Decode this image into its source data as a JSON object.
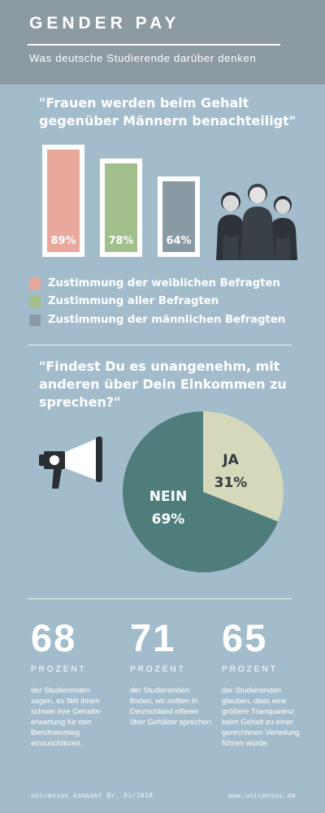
{
  "header": {
    "title": "GENDER PAY",
    "subtitle": "Was deutsche Studierende darüber denken"
  },
  "colors": {
    "header_bg": "#8c9aa1",
    "page_bg": "#a3bccb",
    "female": "#e8a89b",
    "all": "#a3bf8c",
    "male": "#8a9aa5",
    "pie_yes": "#d5d8ba",
    "pie_no": "#4e7d7c"
  },
  "question1": "\"Frauen werden beim Gehalt gegenüber Männern benachteiligt\"",
  "chart_data": [
    {
      "type": "bar",
      "title": "\"Frauen werden beim Gehalt gegenüber Männern benachteiligt\"",
      "categories": [
        "Zustimmung der weiblichen Befragten",
        "Zustimmung aller Befragten",
        "Zustimmung der männlichen Befragten"
      ],
      "values": [
        89,
        78,
        64
      ],
      "value_labels": [
        "89%",
        "78%",
        "64%"
      ],
      "unit": "%",
      "colors": [
        "#e8a89b",
        "#a3bf8c",
        "#8a9aa5"
      ],
      "legend_placement": "bottom",
      "grid": false
    },
    {
      "type": "pie",
      "title": "\"Findest Du es unangenehm, mit anderen über Dein Einkommen zu sprechen?\"",
      "slices": [
        {
          "label": "JA",
          "value": 31,
          "value_label": "31%",
          "color": "#d5d8ba"
        },
        {
          "label": "NEIN",
          "value": 69,
          "value_label": "69%",
          "color": "#4e7d7c"
        }
      ]
    }
  ],
  "legend": [
    {
      "label": "Zustimmung der weiblichen Befragten",
      "color": "#e8a89b"
    },
    {
      "label": "Zustimmung aller Befragten",
      "color": "#a3bf8c"
    },
    {
      "label": "Zustimmung der männlichen Befragten",
      "color": "#8a9aa5"
    }
  ],
  "question2": "\"Findest Du es unangenehm, mit anderen über Dein Einkommen zu sprechen?\"",
  "pie_labels": {
    "yes_label": "JA",
    "yes_value": "31%",
    "no_label": "NEIN",
    "no_value": "69%"
  },
  "stats": [
    {
      "number": "68",
      "unit": "PROZENT",
      "desc": "der Studierenden sagen, es fällt ihnen schwer ihre Gehalts-erwartung für den Berufseinstieg einzuschätzen."
    },
    {
      "number": "71",
      "unit": "PROZENT",
      "desc": "der Studierenden finden, wir sollten in Deutschland offener über Gehälter sprechen."
    },
    {
      "number": "65",
      "unit": "PROZENT",
      "desc": "der Studierenden glauben, dass eine größere Transparenz beim Gehalt zu einer gerechteren Verteilung führen würde."
    }
  ],
  "footer": {
    "left": "unicensus kompakt Nr. 01/2018",
    "right": "www.unicensus.de"
  }
}
